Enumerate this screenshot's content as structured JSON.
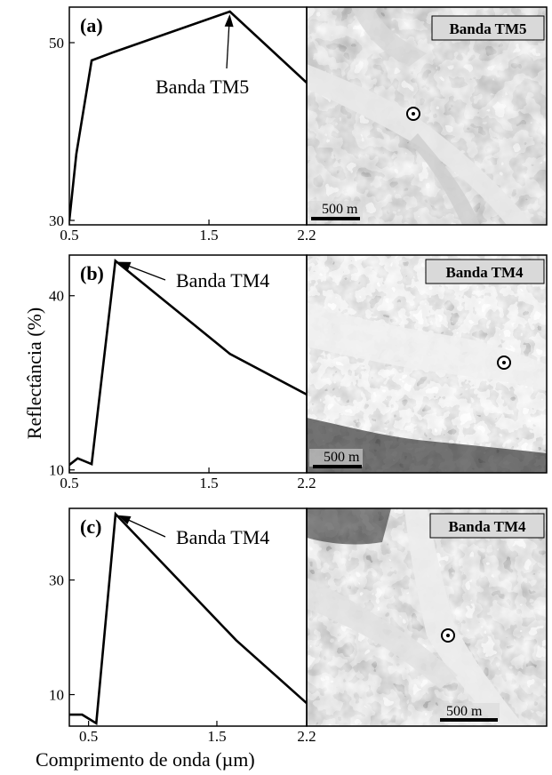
{
  "ylabel": "Reflectância (%)",
  "xlabel": "Comprimento de onda (µm)",
  "chart_data": [
    {
      "type": "line",
      "panel": "(a)",
      "x": [
        0.5,
        0.55,
        0.66,
        0.83,
        1.65,
        2.2
      ],
      "y": [
        30,
        37.5,
        48,
        49,
        53.5,
        45.5
      ],
      "xlim": [
        0.5,
        2.2
      ],
      "ylim": [
        29.5,
        54
      ],
      "xticks": [
        0.5,
        1.5,
        2.2
      ],
      "xtick_labels": [
        "0.5",
        "1.5",
        "2.2"
      ],
      "yticks": [
        30,
        50
      ],
      "ytick_labels": [
        "30",
        "50"
      ],
      "annotation": "Banda TM5",
      "annotation_target": [
        1.65,
        53.5
      ],
      "image_label": "Banda TM5",
      "scale_label": "500 m"
    },
    {
      "type": "line",
      "panel": "(b)",
      "x": [
        0.48,
        0.56,
        0.66,
        0.83,
        1.65,
        2.2
      ],
      "y": [
        10.5,
        12,
        11,
        46,
        30,
        23
      ],
      "xlim": [
        0.5,
        2.2
      ],
      "ylim": [
        9.5,
        47
      ],
      "xticks": [
        0.5,
        1.5,
        2.2
      ],
      "xtick_labels": [
        "0.5",
        "1.5",
        "2.2"
      ],
      "yticks": [
        10,
        40
      ],
      "ytick_labels": [
        "10",
        "40"
      ],
      "annotation": "Banda TM4",
      "annotation_target": [
        0.83,
        46
      ],
      "image_label": "Banda TM4",
      "scale_label": "500 m"
    },
    {
      "type": "line",
      "panel": "(c)",
      "x": [
        0.35,
        0.45,
        0.56,
        0.71,
        1.65,
        2.2
      ],
      "y": [
        6.5,
        6.5,
        5,
        41.5,
        19.5,
        8.5
      ],
      "xlim": [
        0.35,
        2.2
      ],
      "ylim": [
        4.5,
        42.5
      ],
      "xticks": [
        0.5,
        1.5,
        2.2
      ],
      "xtick_labels": [
        "0.5",
        "1.5",
        "2.2"
      ],
      "yticks": [
        10,
        30
      ],
      "ytick_labels": [
        "10",
        "30"
      ],
      "annotation": "Banda TM4",
      "annotation_target": [
        0.71,
        41.5
      ],
      "image_label": "Banda TM4",
      "scale_label": "500 m"
    }
  ]
}
